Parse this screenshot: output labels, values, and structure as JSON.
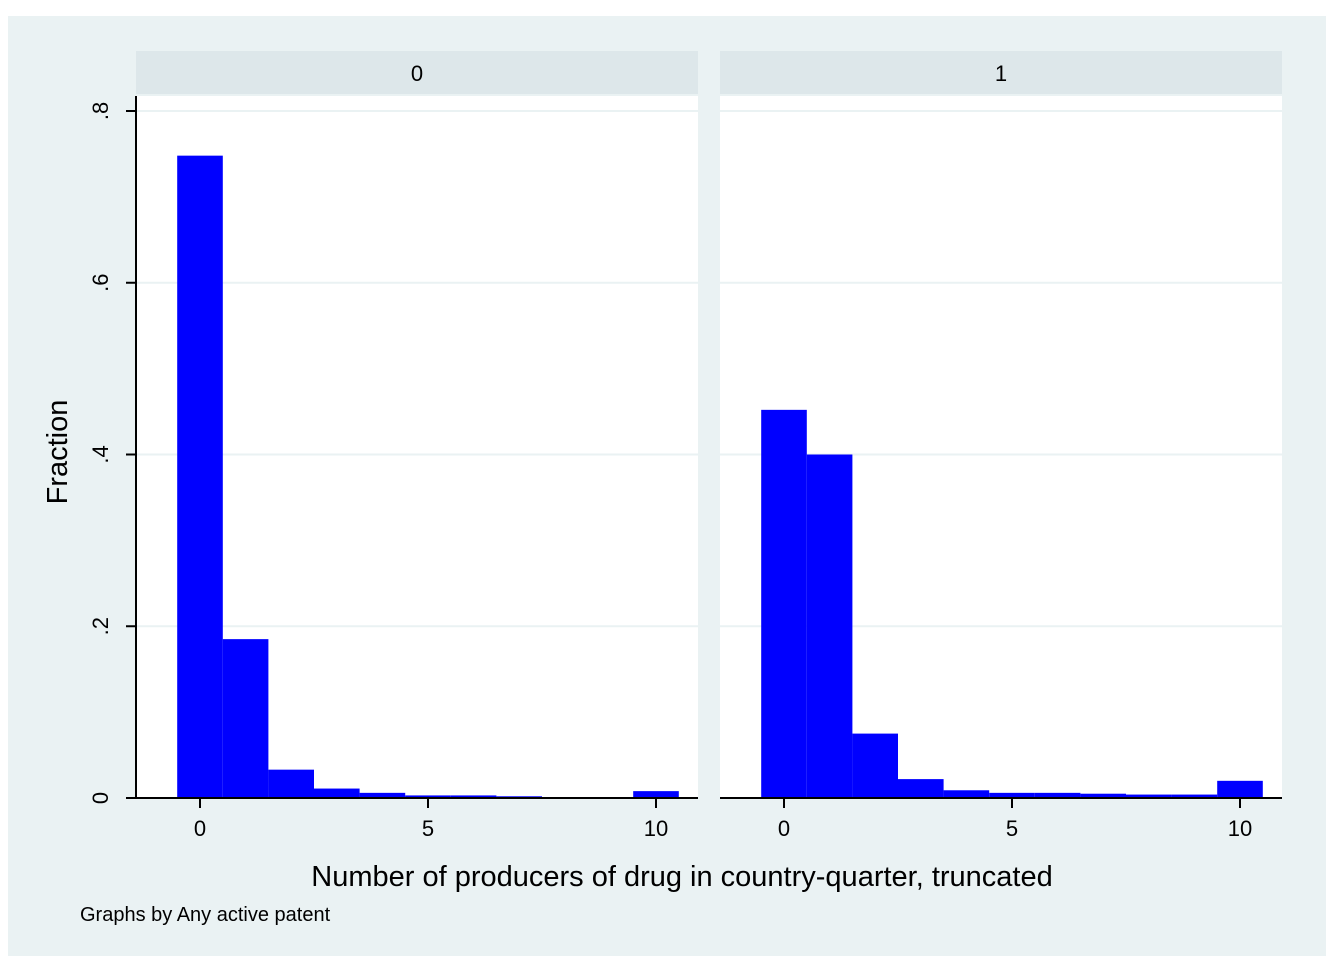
{
  "chart_data": {
    "type": "bar",
    "chart_kind": "histogram",
    "xlabel": "Number of producers of drug in country-quarter, truncated",
    "ylabel": "Fraction",
    "note": "Graphs by Any active patent",
    "xlim": [
      -1,
      11
    ],
    "ylim": [
      0,
      0.8
    ],
    "xticks": [
      0,
      5,
      10
    ],
    "xtick_labels": [
      "0",
      "5",
      "10"
    ],
    "yticks": [
      0,
      0.2,
      0.4,
      0.6,
      0.8
    ],
    "ytick_labels": [
      "0",
      ".2",
      ".4",
      ".6",
      ".8"
    ],
    "bin_width": 1,
    "bins": [
      0,
      1,
      2,
      3,
      4,
      5,
      6,
      7,
      8,
      9,
      10
    ],
    "grid": true,
    "bar_color": "#0000ff",
    "panel_strip_color": "#dde7ea",
    "background_color": "#eaf2f3",
    "panels": [
      {
        "label": "0",
        "values": [
          0.748,
          0.185,
          0.033,
          0.011,
          0.006,
          0.003,
          0.003,
          0.002,
          0.001,
          0.001,
          0.008
        ]
      },
      {
        "label": "1",
        "values": [
          0.452,
          0.4,
          0.075,
          0.022,
          0.009,
          0.006,
          0.006,
          0.005,
          0.004,
          0.004,
          0.02
        ]
      }
    ]
  }
}
